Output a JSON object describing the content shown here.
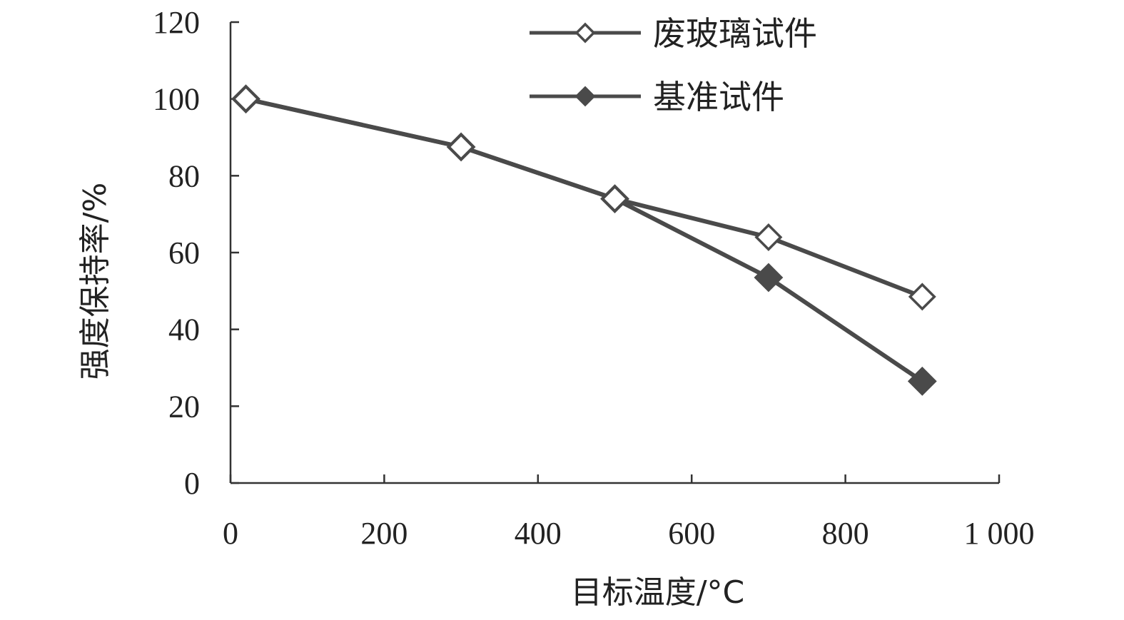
{
  "chart_data": {
    "type": "line",
    "xlabel": "目标温度/°C",
    "ylabel": "强度保持率/%",
    "xlim": [
      0,
      1000
    ],
    "ylim": [
      0,
      120
    ],
    "xticks": [
      0,
      200,
      400,
      600,
      800,
      1000
    ],
    "xtick_labels": [
      "0",
      "200",
      "400",
      "600",
      "800",
      "1 000"
    ],
    "yticks": [
      0,
      20,
      40,
      60,
      80,
      100,
      120
    ],
    "ytick_labels": [
      "0",
      "20",
      "40",
      "60",
      "80",
      "100",
      "120"
    ],
    "grid": false,
    "legend_position": "top-right",
    "x": [
      20,
      300,
      500,
      700,
      900
    ],
    "series": [
      {
        "name": "废玻璃试件",
        "marker": "hollow-diamond",
        "values": [
          100,
          87.5,
          74,
          64,
          48.5
        ]
      },
      {
        "name": "基准试件",
        "marker": "filled-diamond",
        "values": [
          100,
          87.5,
          74,
          53.5,
          26.5
        ]
      }
    ],
    "colors": {
      "line": "#4a4a4a",
      "marker_fill": "#4a4a4a",
      "axis": "#333333"
    }
  }
}
